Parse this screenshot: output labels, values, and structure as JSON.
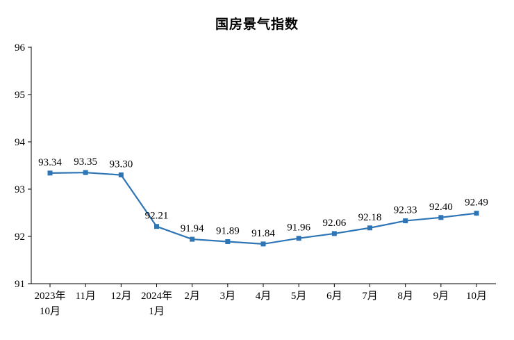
{
  "chart_data": {
    "type": "line",
    "title": "国房景气指数",
    "categories": [
      "2023年10月",
      "11月",
      "12月",
      "2024年1月",
      "2月",
      "3月",
      "4月",
      "5月",
      "6月",
      "7月",
      "8月",
      "9月",
      "10月"
    ],
    "category_labels": [
      [
        "2023年",
        "10月"
      ],
      [
        "11月"
      ],
      [
        "12月"
      ],
      [
        "2024年",
        "1月"
      ],
      [
        "2月"
      ],
      [
        "3月"
      ],
      [
        "4月"
      ],
      [
        "5月"
      ],
      [
        "6月"
      ],
      [
        "7月"
      ],
      [
        "8月"
      ],
      [
        "9月"
      ],
      [
        "10月"
      ]
    ],
    "values": [
      93.34,
      93.35,
      93.3,
      92.21,
      91.94,
      91.89,
      91.84,
      91.96,
      92.06,
      92.18,
      92.33,
      92.4,
      92.49
    ],
    "data_labels": [
      "93.34",
      "93.35",
      "93.30",
      "92.21",
      "91.94",
      "91.89",
      "91.84",
      "91.96",
      "92.06",
      "92.18",
      "92.33",
      "92.40",
      "92.49"
    ],
    "xlabel": "",
    "ylabel": "",
    "ylim": [
      91,
      96
    ],
    "yticks": [
      91,
      92,
      93,
      94,
      95,
      96
    ],
    "grid": false,
    "legend": "none",
    "line_color": "#2E75B6",
    "axis_color": "#000000",
    "text_color": "#000000",
    "marker": "square"
  }
}
